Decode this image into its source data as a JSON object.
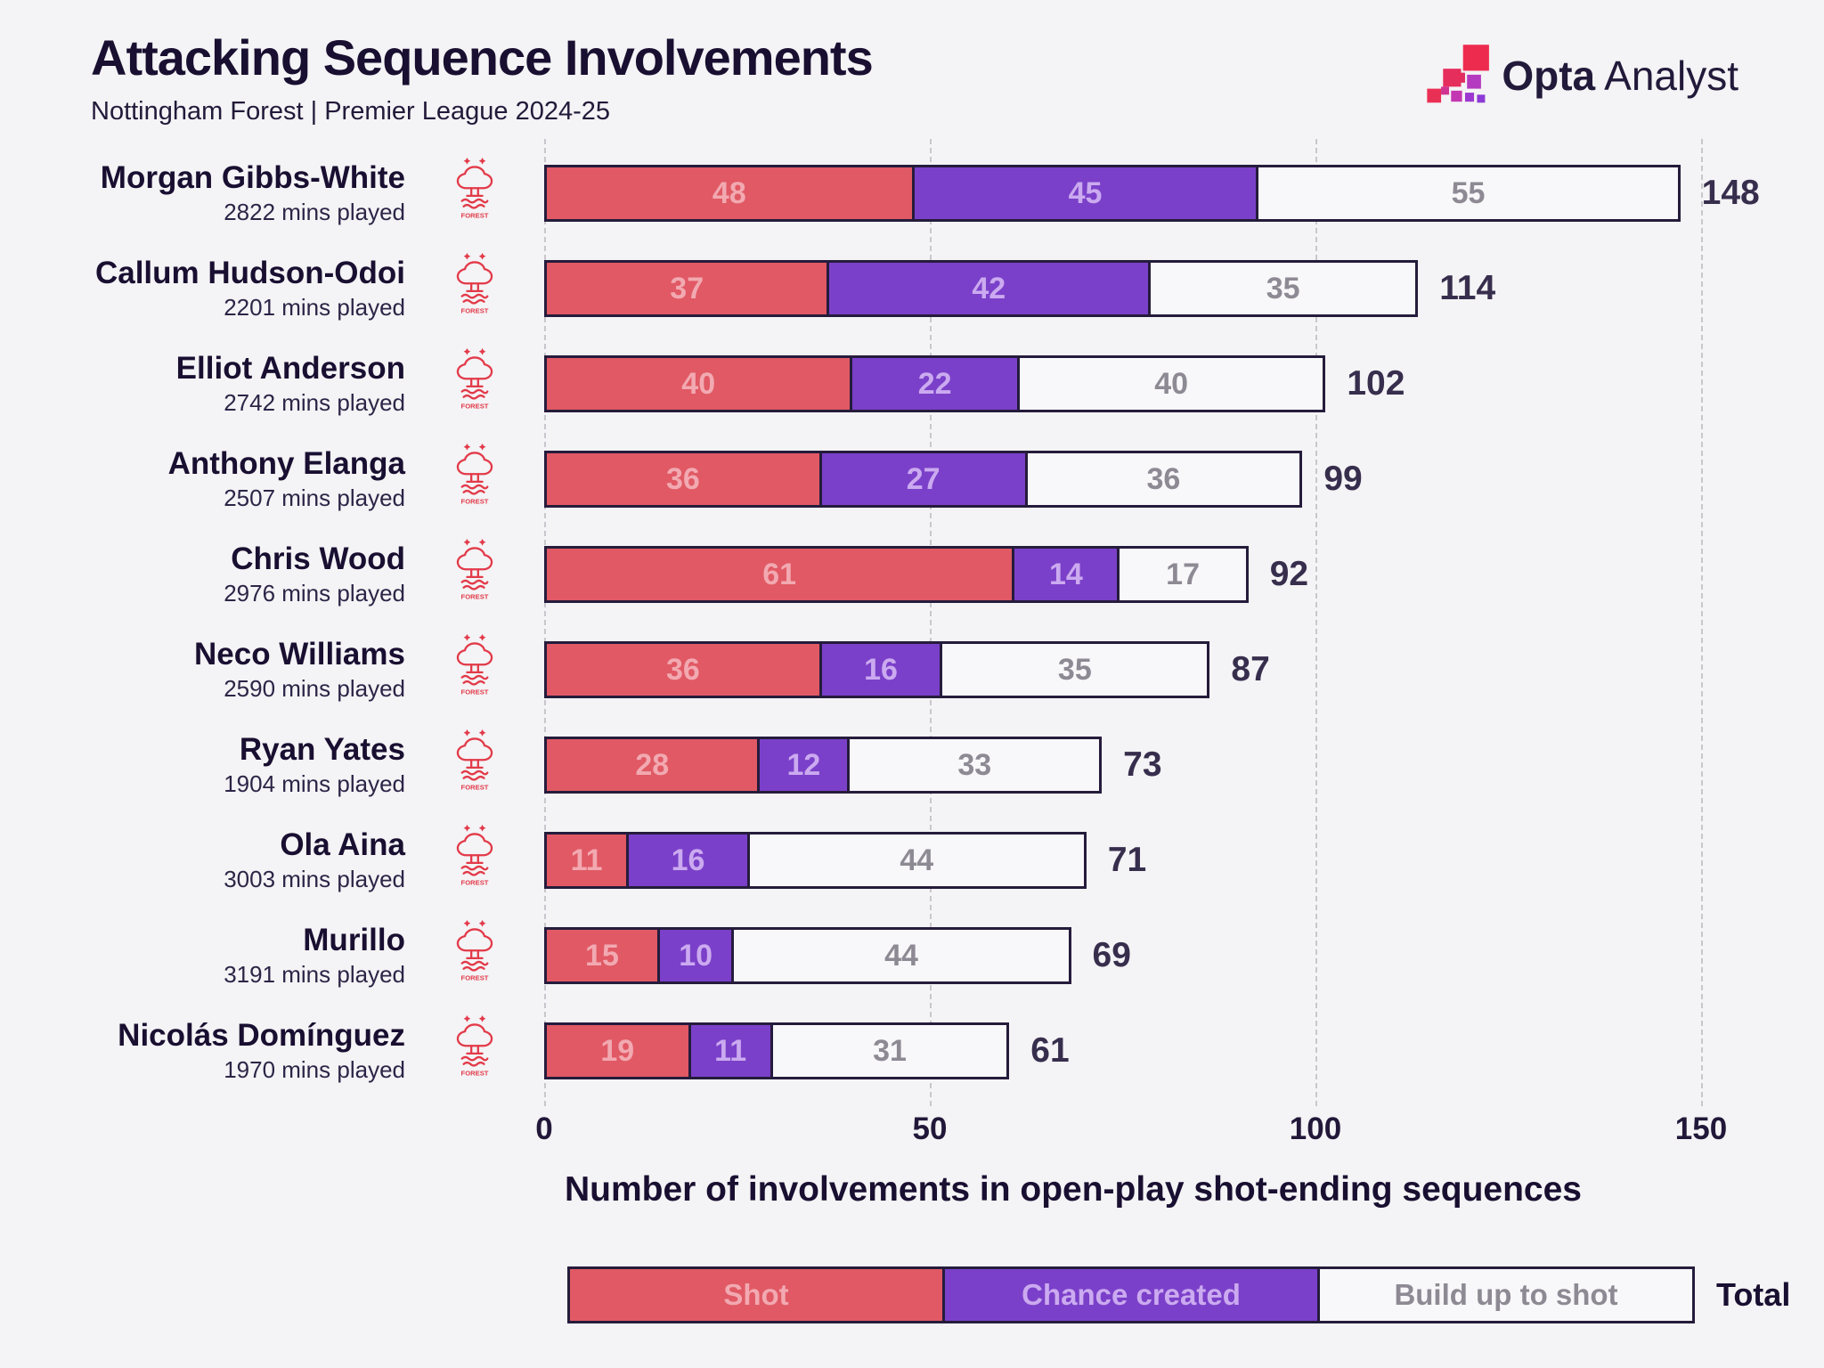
{
  "header": {
    "title": "Attacking Sequence Involvements",
    "subtitle": "Nottingham Forest | Premier League 2024-25"
  },
  "logo": {
    "opta": "Opta",
    "analyst": "Analyst"
  },
  "chart_data": {
    "type": "bar",
    "stacked": true,
    "orientation": "horizontal",
    "title": "Attacking Sequence Involvements",
    "subtitle": "Nottingham Forest | Premier League 2024-25",
    "xlabel": "Number of involvements in open-play shot-ending sequences",
    "x_ticks": [
      0,
      50,
      100,
      150
    ],
    "xlim": [
      0,
      160
    ],
    "grid": "dashed-vertical-gridlines",
    "legend_position": "bottom",
    "series_names": [
      "Shot",
      "Chance created",
      "Build up to shot"
    ],
    "players": [
      {
        "name": "Morgan Gibbs-White",
        "mins_label": "2822 mins played",
        "shot": 48,
        "chance_created": 45,
        "build_up": 55,
        "total": 148
      },
      {
        "name": "Callum Hudson-Odoi",
        "mins_label": "2201 mins played",
        "shot": 37,
        "chance_created": 42,
        "build_up": 35,
        "total": 114
      },
      {
        "name": "Elliot Anderson",
        "mins_label": "2742 mins played",
        "shot": 40,
        "chance_created": 22,
        "build_up": 40,
        "total": 102
      },
      {
        "name": "Anthony Elanga",
        "mins_label": "2507 mins played",
        "shot": 36,
        "chance_created": 27,
        "build_up": 36,
        "total": 99
      },
      {
        "name": "Chris Wood",
        "mins_label": "2976 mins played",
        "shot": 61,
        "chance_created": 14,
        "build_up": 17,
        "total": 92
      },
      {
        "name": "Neco Williams",
        "mins_label": "2590 mins played",
        "shot": 36,
        "chance_created": 16,
        "build_up": 35,
        "total": 87
      },
      {
        "name": "Ryan Yates",
        "mins_label": "1904 mins played",
        "shot": 28,
        "chance_created": 12,
        "build_up": 33,
        "total": 73
      },
      {
        "name": "Ola Aina",
        "mins_label": "3003 mins played",
        "shot": 11,
        "chance_created": 16,
        "build_up": 44,
        "total": 71
      },
      {
        "name": "Murillo",
        "mins_label": "3191 mins played",
        "shot": 15,
        "chance_created": 10,
        "build_up": 44,
        "total": 69
      },
      {
        "name": "Nicolás Domínguez",
        "mins_label": "1970 mins played",
        "shot": 19,
        "chance_created": 11,
        "build_up": 31,
        "total": 61
      }
    ],
    "legend": {
      "shot": "Shot",
      "chance": "Chance created",
      "build": "Build up to shot",
      "total": "Total"
    },
    "colors": {
      "shot": "#e05964",
      "chance_created": "#7b40c9",
      "build_up": "#f8f7f9",
      "bar_border": "#251c3c",
      "background": "#f4f3f5",
      "gridline": "#c9c7cd",
      "crest_red": "#e23a49",
      "text_dark": "#190f31",
      "shot_value_label": "#f2a9b1",
      "chance_value_label": "#cbaaf0",
      "build_value_label": "#8d8a94"
    }
  }
}
